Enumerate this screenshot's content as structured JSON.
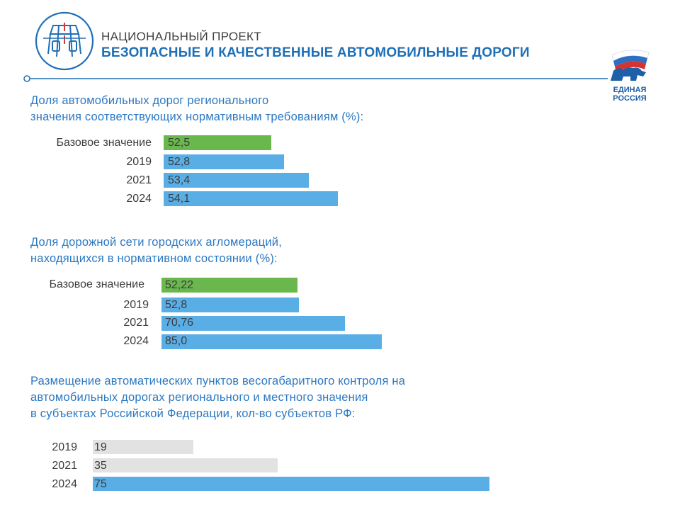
{
  "header": {
    "label": "НАЦИОНАЛЬНЫЙ ПРОЕКТ",
    "title": "БЕЗОПАСНЫЕ И КАЧЕСТВЕННЫЕ АВТОМОБИЛЬНЫЕ ДОРОГИ"
  },
  "logo": {
    "line1": "ЕДИНАЯ",
    "line2": "РОССИЯ"
  },
  "colors": {
    "accent": "#2b78c2",
    "blue_bar": "#5aaee6",
    "green_bar": "#6ab74e",
    "grey_bar": "#e2e2e2"
  },
  "chart_data": [
    {
      "type": "bar",
      "orientation": "horizontal",
      "title_lines": [
        "Доля автомобильных  дорог регионального",
        "значения соответствующих  нормативным  требованиям  (%):"
      ],
      "categories": [
        "Базовое значение",
        "2019",
        "2021",
        "2024"
      ],
      "values": [
        52.5,
        52.8,
        53.4,
        54.1
      ],
      "value_labels": [
        "52,5",
        "52,8",
        "53,4",
        "54,1"
      ],
      "bar_colors": [
        "green",
        "blue",
        "blue",
        "blue"
      ]
    },
    {
      "type": "bar",
      "orientation": "horizontal",
      "title_lines": [
        "Доля дорожной сети городских агломераций,",
        "находящихся в нормативном  состоянии (%):"
      ],
      "categories": [
        "Базовое значение",
        "2019",
        "2021",
        "2024"
      ],
      "values": [
        52.22,
        52.8,
        70.76,
        85.0
      ],
      "value_labels": [
        "52,22",
        "52,8",
        "70,76",
        "85,0"
      ],
      "bar_colors": [
        "green",
        "blue",
        "blue",
        "blue"
      ]
    },
    {
      "type": "bar",
      "orientation": "horizontal",
      "title_lines": [
        "Размещение  автоматических  пунктов весогабаритного  контроля на",
        "автомобильных дорогах регионального  и местного  значения",
        "в субъектах Российской Федерации, кол-во субъектов РФ:"
      ],
      "categories": [
        "2019",
        "2021",
        "2024"
      ],
      "values": [
        19,
        35,
        75
      ],
      "value_labels": [
        "19",
        "35",
        "75"
      ],
      "bar_colors": [
        "grey",
        "grey",
        "blue"
      ]
    }
  ]
}
